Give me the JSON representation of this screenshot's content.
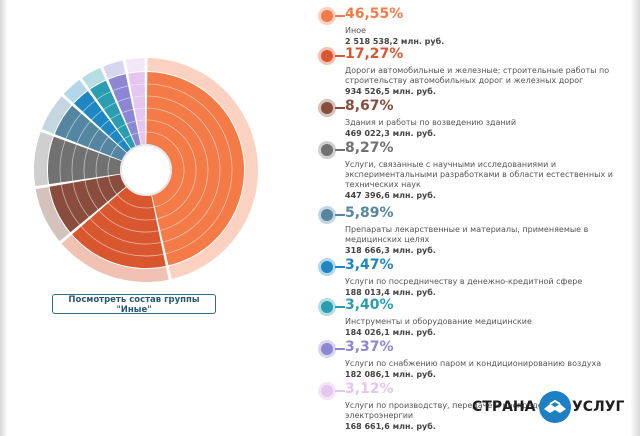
{
  "chart_data": {
    "type": "pie",
    "legend_position": "right",
    "unit": "млн. руб.",
    "slices": [
      {
        "percent": "46,55%",
        "value": 46.55,
        "label": "Иное",
        "amount": "2 518 538,2 млн. руб.",
        "color": "#f47b48",
        "light": "#fbd2c2"
      },
      {
        "percent": "17,27%",
        "value": 17.27,
        "label": "Дороги автомобильные и железные; строительные работы по строительству автомобильных дорог и железных дорог",
        "amount": "934 526,5 млн. руб.",
        "color": "#d9572f",
        "light": "#f1c1b3"
      },
      {
        "percent": "8,67%",
        "value": 8.67,
        "label": "Здания и работы по возведению зданий",
        "amount": "469 022,3 млн. руб.",
        "color": "#8a4c3c",
        "light": "#d4c2bd"
      },
      {
        "percent": "8,27%",
        "value": 8.27,
        "label": "Услуги, связанные с научными исследованиями и экспериментальными разработками в области естественных и технических наук",
        "amount": "447 396,6 млн. руб.",
        "color": "#717171",
        "light": "#cfcfcf"
      },
      {
        "percent": "5,89%",
        "value": 5.89,
        "label": "Препараты лекарственные и материалы, применяемые в медицинских целях",
        "amount": "318 666,3 млн. руб.",
        "color": "#5486a2",
        "light": "#c4d6e0"
      },
      {
        "percent": "3,47%",
        "value": 3.47,
        "label": "Услуги по посредничеству в денежно-кредитной сфере",
        "amount": "188 013,4 млн. руб.",
        "color": "#1e86c1",
        "light": "#b3d6ea"
      },
      {
        "percent": "3,40%",
        "value": 3.4,
        "label": "Инструменты и оборудование медицинские",
        "amount": "184 026,1 млн. руб.",
        "color": "#2a9db0",
        "light": "#b6dde3"
      },
      {
        "percent": "3,37%",
        "value": 3.37,
        "label": "Услуги по снабжению паром и кондиционированию воздуха",
        "amount": "182 086,1 млн. руб.",
        "color": "#8d86d3",
        "light": "#d8d5ef"
      },
      {
        "percent": "3,12%",
        "value": 3.12,
        "label": "Услуги по производству, передаче и распределению электроэнергии",
        "amount": "168 661,6 млн. руб.",
        "color": "#e4c6ee",
        "light": "#f3e6f7"
      }
    ]
  },
  "button": {
    "label": "Посмотреть состав группы \"Иные\""
  },
  "watermark": {
    "left": "СТРАНА",
    "right": "УСЛУГ",
    "colors": {
      "logo": "#1d7fc4"
    }
  }
}
